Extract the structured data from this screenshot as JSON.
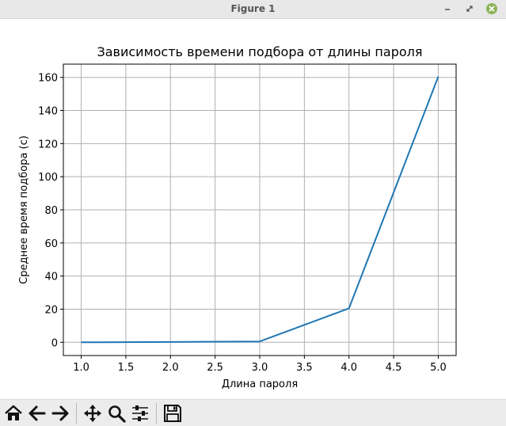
{
  "window": {
    "title": "Figure 1"
  },
  "toolbar": {
    "buttons": [
      {
        "name": "home",
        "icon": "home-icon"
      },
      {
        "name": "back",
        "icon": "arrow-left-icon"
      },
      {
        "name": "forward",
        "icon": "arrow-right-icon"
      },
      {
        "name": "pan",
        "icon": "move-icon"
      },
      {
        "name": "zoom",
        "icon": "magnifier-icon"
      },
      {
        "name": "configure-subplots",
        "icon": "sliders-icon"
      },
      {
        "name": "save",
        "icon": "floppy-disk-icon"
      }
    ]
  },
  "chart_data": {
    "type": "line",
    "title": "Зависимость времени подбора от длины пароля",
    "xlabel": "Длина пароля",
    "ylabel": "Среднее время подбора (с)",
    "x": [
      1,
      2,
      3,
      4,
      5
    ],
    "series": [
      {
        "values": [
          0.01,
          0.2,
          0.5,
          20.5,
          160.5
        ],
        "color": "#1f77b4"
      }
    ],
    "xlim": [
      0.8,
      5.2
    ],
    "ylim": [
      -8,
      168
    ],
    "xticks": [
      1.0,
      1.5,
      2.0,
      2.5,
      3.0,
      3.5,
      4.0,
      4.5,
      5.0
    ],
    "xtick_labels": [
      "1.0",
      "1.5",
      "2.0",
      "2.5",
      "3.0",
      "3.5",
      "4.0",
      "4.5",
      "5.0"
    ],
    "yticks": [
      0,
      20,
      40,
      60,
      80,
      100,
      120,
      140,
      160
    ],
    "ytick_labels": [
      "0",
      "20",
      "40",
      "60",
      "80",
      "100",
      "120",
      "140",
      "160"
    ],
    "grid": true
  }
}
